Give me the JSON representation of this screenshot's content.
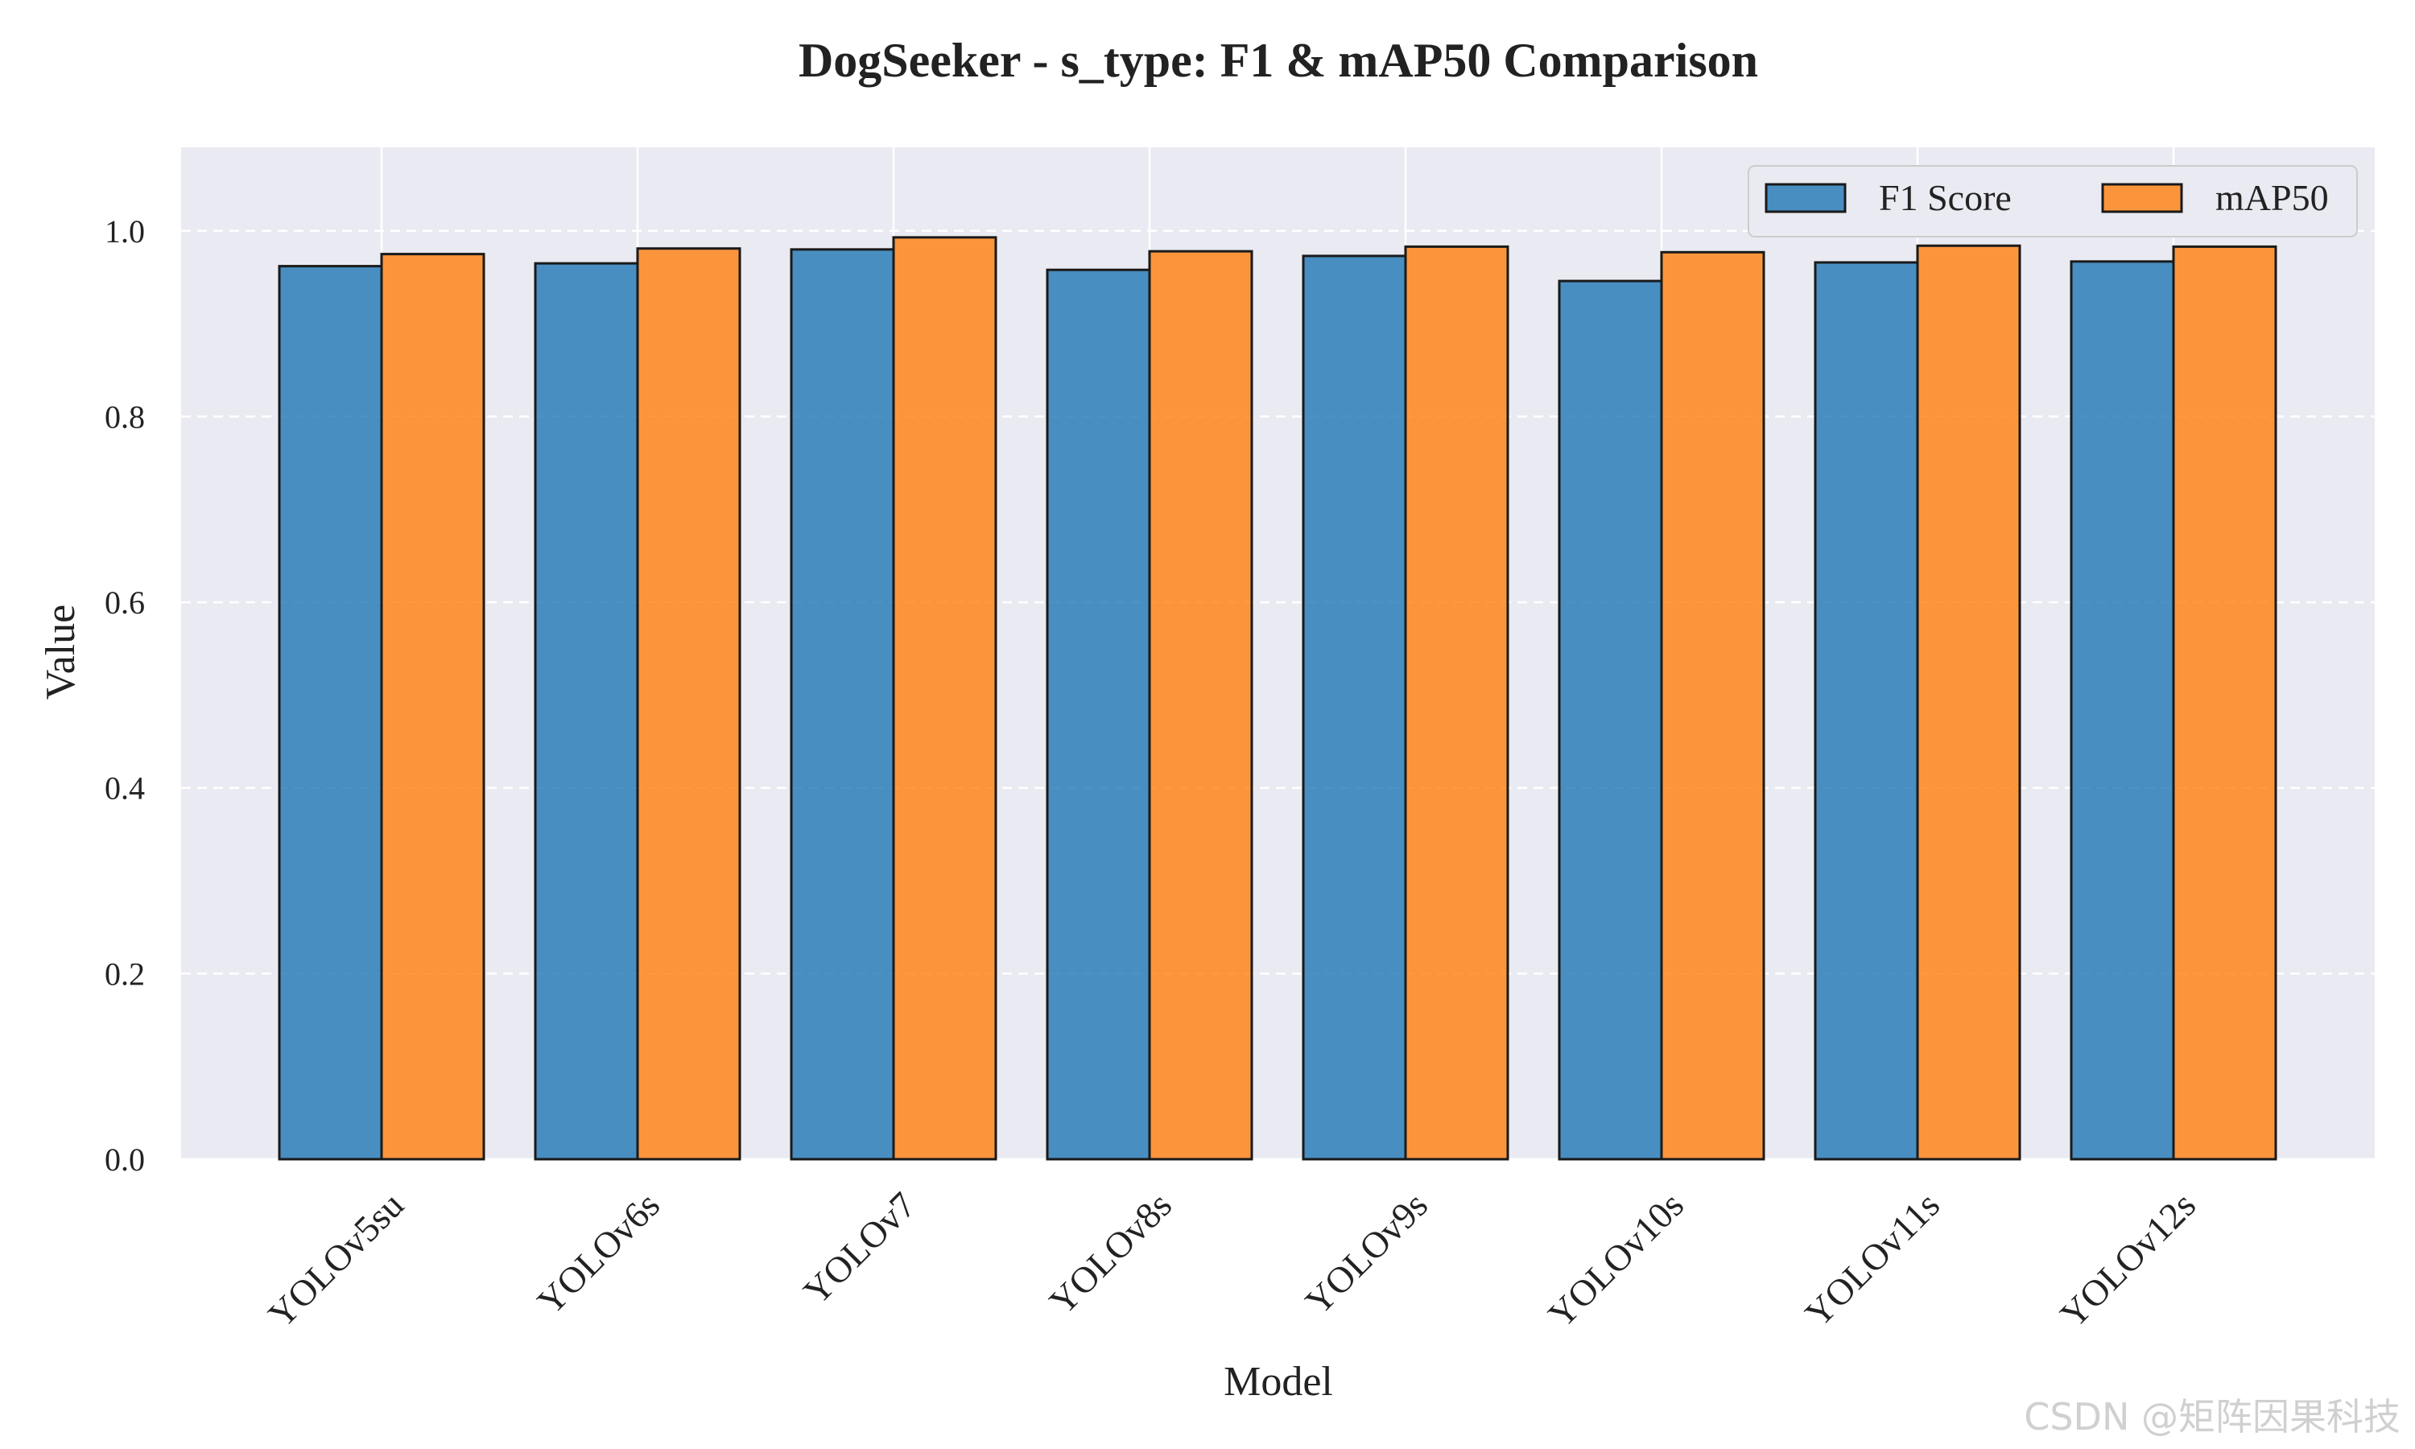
{
  "chart_data": {
    "type": "bar",
    "title": "DogSeeker - s_type: F1 & mAP50 Comparison",
    "xlabel": "Model",
    "ylabel": "Value",
    "categories": [
      "YOLOv5su",
      "YOLOv6s",
      "YOLOv7",
      "YOLOv8s",
      "YOLOv9s",
      "YOLOv10s",
      "YOLOv11s",
      "YOLOv12s"
    ],
    "series": [
      {
        "name": "F1 Score",
        "color": "#1f77b4",
        "values": [
          0.962,
          0.965,
          0.98,
          0.958,
          0.973,
          0.946,
          0.966,
          0.967
        ]
      },
      {
        "name": "mAP50",
        "color": "#ff7f0e",
        "values": [
          0.975,
          0.981,
          0.993,
          0.978,
          0.983,
          0.977,
          0.984,
          0.983
        ]
      }
    ],
    "ylim": [
      0,
      1.09
    ],
    "yticks": [
      "0.0",
      "0.2",
      "0.4",
      "0.6",
      "0.8",
      "1.0"
    ],
    "grid": true,
    "legend_position": "top-right",
    "background": "#eaeaf2"
  },
  "watermark": "CSDN @矩阵因果科技"
}
